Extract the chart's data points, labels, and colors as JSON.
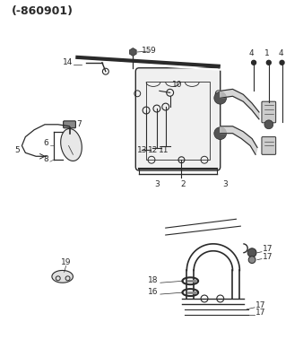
{
  "title": "(-860901)",
  "bg_color": "#ffffff",
  "line_color": "#2a2a2a",
  "title_fontsize": 9,
  "label_fontsize": 6.5,
  "figsize": [
    3.38,
    3.88
  ],
  "dpi": 100
}
